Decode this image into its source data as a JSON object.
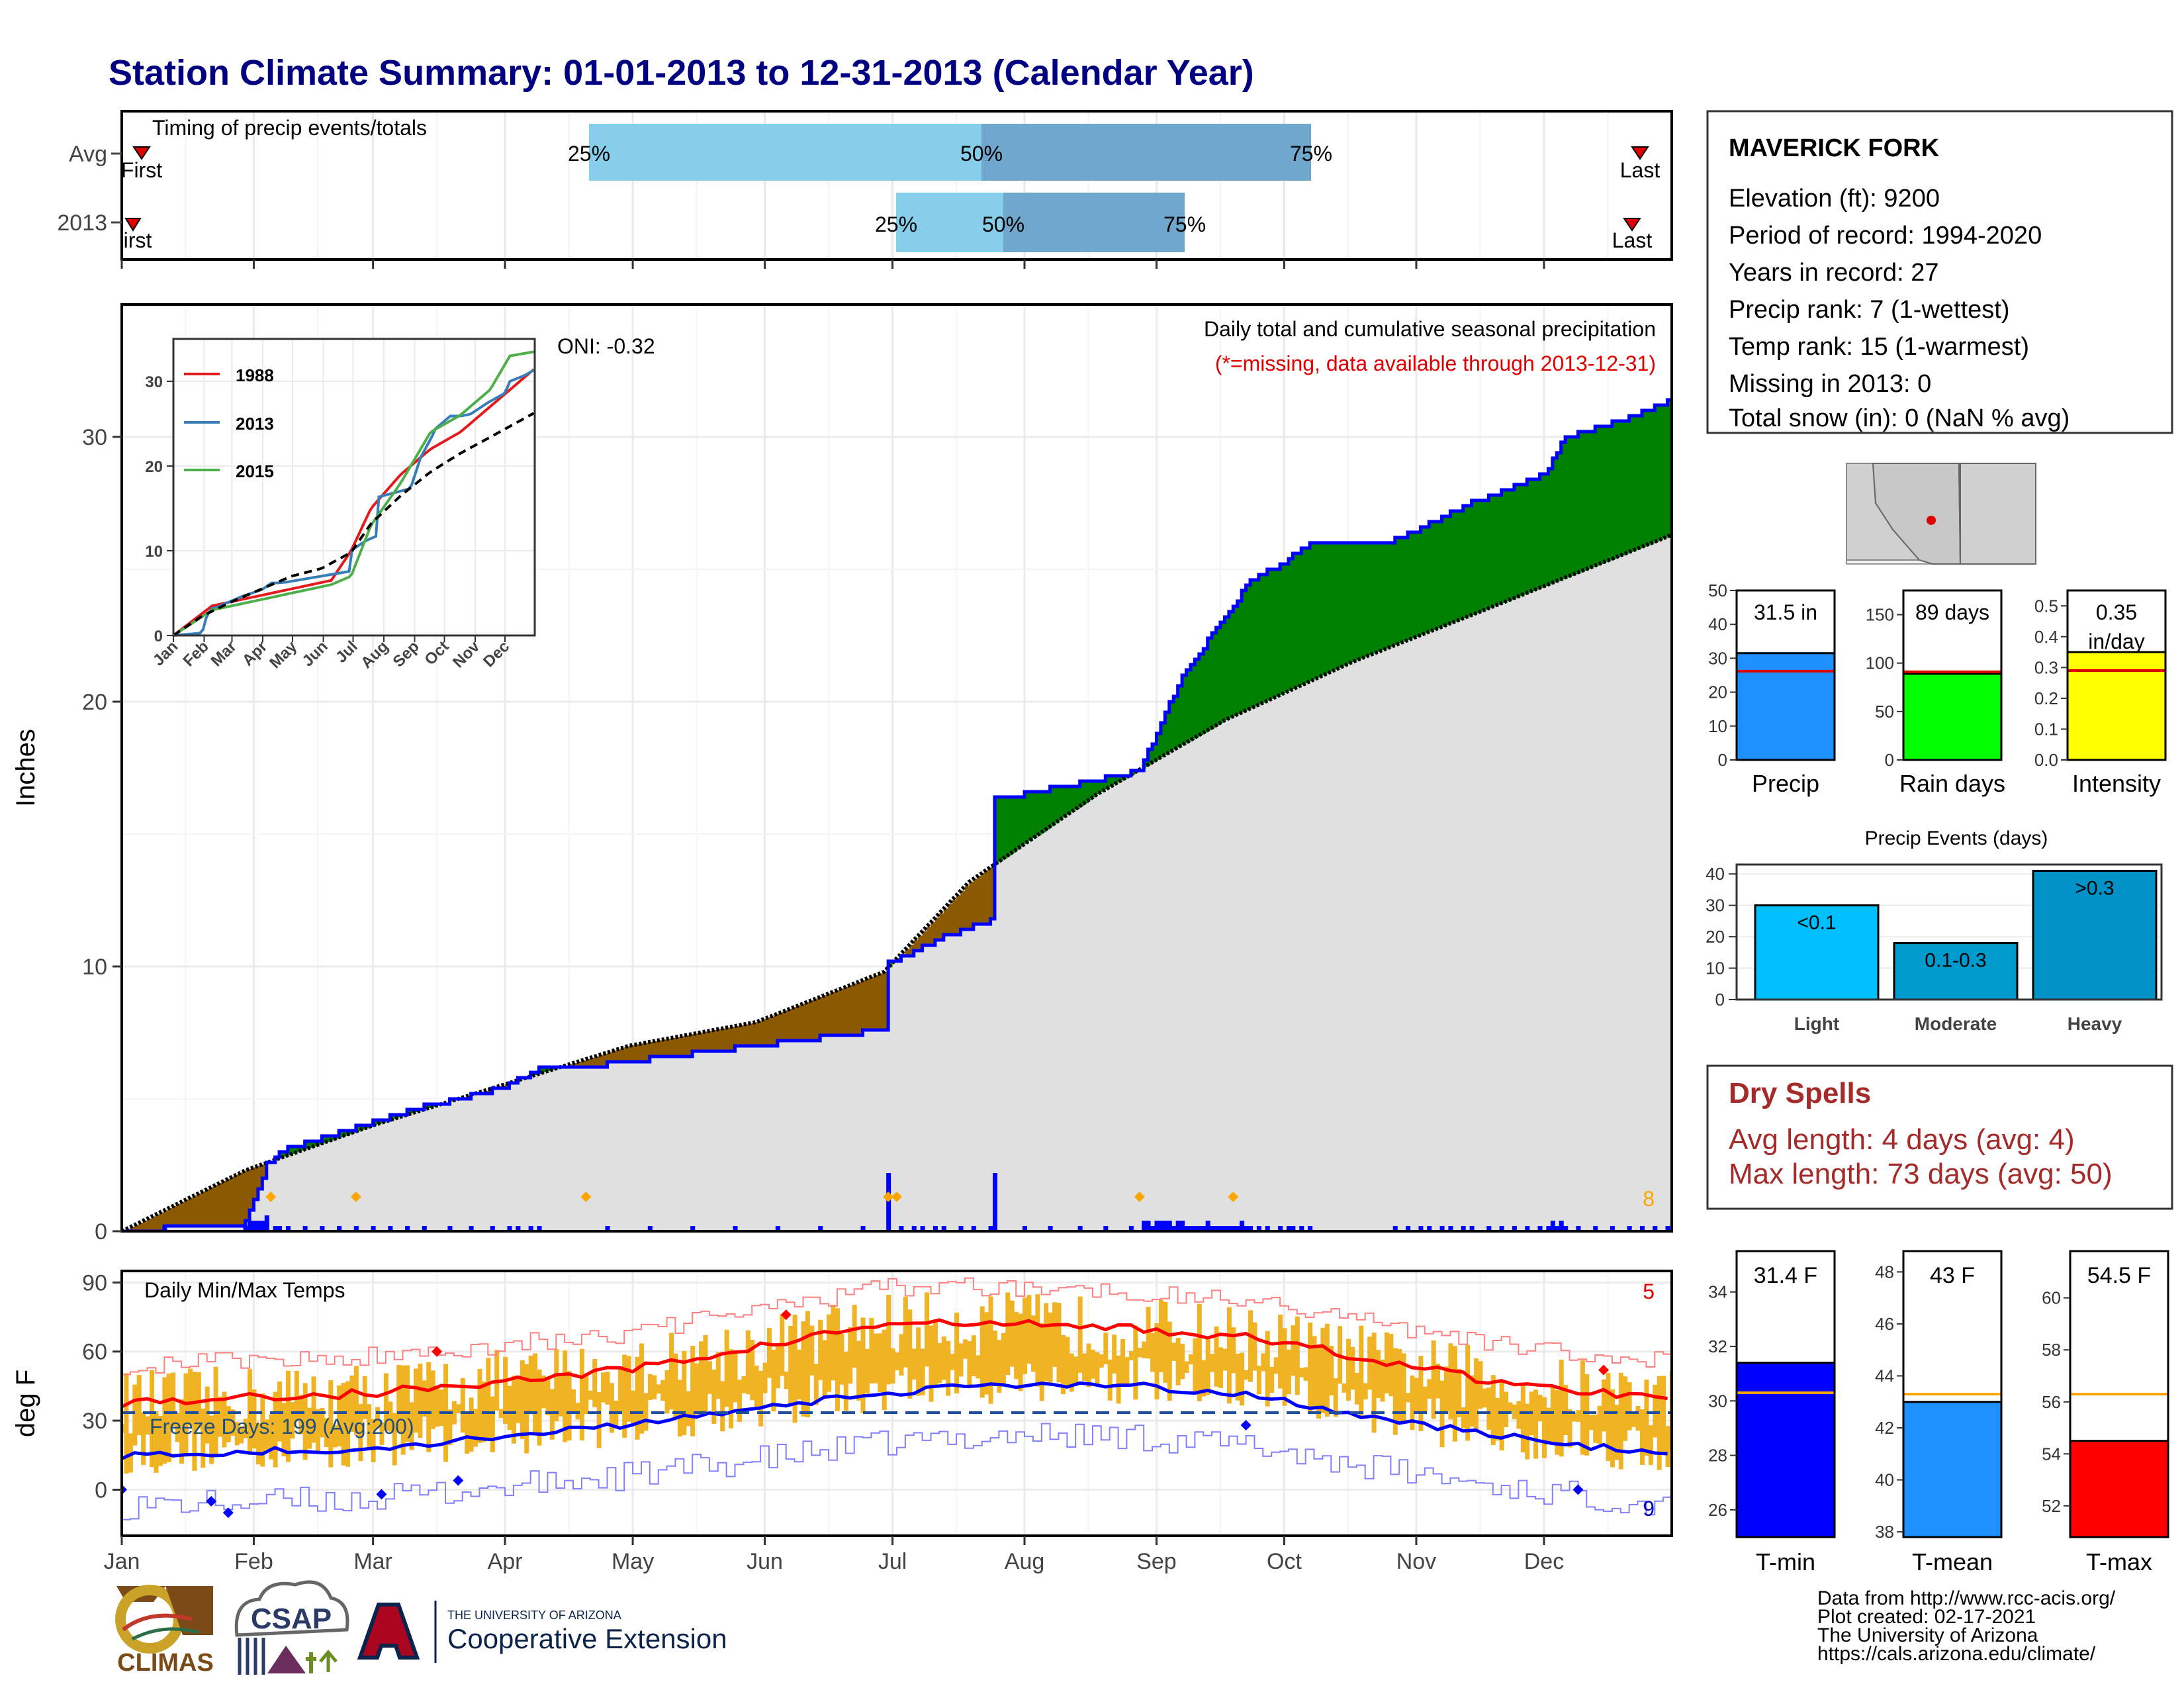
{
  "title": "Station Climate Summary: 01-01-2013 to 12-31-2013 (Calendar Year)",
  "months": [
    "Jan",
    "Feb",
    "Mar",
    "Apr",
    "May",
    "Jun",
    "Jul",
    "Aug",
    "Sep",
    "Oct",
    "Nov",
    "Dec"
  ],
  "timing": {
    "label": "Timing of precip events/totals",
    "rows": [
      "Avg",
      "2013"
    ],
    "first": "First",
    "first_2013": "irst",
    "last": "Last",
    "p25": "25%",
    "p50": "50%",
    "p75": "75%"
  },
  "precip_panel": {
    "ylabel": "Inches",
    "oni": "ONI: -0.32",
    "desc": "Daily total and cumulative seasonal precipitation",
    "missing_note": "(*=missing, data available through 2013-12-31)",
    "count_label": "8"
  },
  "inset": {
    "legend": [
      "1988",
      "2013",
      "2015"
    ],
    "months": [
      "Jan",
      "Feb",
      "Mar",
      "Apr",
      "May",
      "Jun",
      "Jul",
      "Aug",
      "Sep",
      "Oct",
      "Nov",
      "Dec"
    ]
  },
  "temp_panel": {
    "ylabel": "deg F",
    "label": "Daily Min/Max Temps",
    "freeze": "Freeze Days: 199 (Avg:200)",
    "count_hi": "5",
    "count_lo": "9"
  },
  "station": {
    "name": "MAVERICK FORK",
    "lines": [
      "Elevation (ft): 9200",
      "Period of record: 1994-2020",
      "Years in record: 27",
      "Precip rank: 7 (1-wettest)",
      "Temp rank: 15 (1-warmest)",
      "Missing in 2013: 0",
      "Total snow (in): 0 (NaN % avg)"
    ]
  },
  "summary_bars": {
    "precip": {
      "label": "Precip",
      "value_text": "31.5 in",
      "value": 31.5,
      "avg": 26.2,
      "ticks": [
        "0",
        "10",
        "20",
        "30",
        "40",
        "50"
      ],
      "max": 50,
      "color": "#1e90ff"
    },
    "rain_days": {
      "label": "Rain days",
      "value_text": "89 days",
      "value": 89,
      "avg": 91,
      "ticks": [
        "0",
        "50",
        "100",
        "150"
      ],
      "max": 175,
      "color": "#00ff00"
    },
    "intensity": {
      "label": "Intensity",
      "value_text": "0.35",
      "value_text2": "in/day",
      "value": 0.35,
      "avg": 0.29,
      "ticks": [
        "0.0",
        "0.1",
        "0.2",
        "0.3",
        "0.4",
        "0.5"
      ],
      "max": 0.55,
      "color": "#ffff00"
    }
  },
  "precip_events": {
    "title": "Precip Events (days)",
    "categories": [
      "Light",
      "Moderate",
      "Heavy"
    ],
    "bar_labels": [
      "<0.1",
      "0.1-0.3",
      ">0.3"
    ],
    "values": [
      30,
      18,
      41
    ],
    "ticks": [
      "0",
      "10",
      "20",
      "30",
      "40"
    ],
    "colors": [
      "#00bfff",
      "#009acd",
      "#0092c7"
    ]
  },
  "dry_spells": {
    "title": "Dry Spells",
    "avg": "Avg length: 4 days (avg: 4)",
    "max": "Max length: 73 days (avg: 50)"
  },
  "temp_bars": {
    "tmin": {
      "label": "T-min",
      "value_text": "31.4 F",
      "value": 31.4,
      "avg": 30.3,
      "min": 25,
      "max": 35.5,
      "ticks": [
        "26",
        "28",
        "30",
        "32",
        "34"
      ],
      "color": "#0000ff"
    },
    "tmean": {
      "label": "T-mean",
      "value_text": "43 F",
      "value": 43,
      "avg": 43.3,
      "min": 37.8,
      "max": 48.8,
      "ticks": [
        "38",
        "40",
        "42",
        "44",
        "46",
        "48"
      ],
      "color": "#1e90ff"
    },
    "tmax": {
      "label": "T-max",
      "value_text": "54.5 F",
      "value": 54.5,
      "avg": 56.3,
      "min": 50.8,
      "max": 61.8,
      "ticks": [
        "52",
        "54",
        "56",
        "58",
        "60"
      ],
      "color": "#ff0000"
    }
  },
  "credits": [
    "Data from http://www.rcc-acis.org/",
    "Plot created: 02-17-2021",
    "The University of Arizona",
    "https://cals.arizona.edu/climate/"
  ],
  "logos": {
    "climas": "CLIMAS",
    "csap": "CSAP",
    "ua_small": "THE UNIVERSITY OF ARIZONA",
    "coop": "Cooperative Extension"
  },
  "chart_data": [
    {
      "type": "area",
      "title": "Daily total and cumulative seasonal precipitation",
      "ylabel": "Inches",
      "ylim": [
        0,
        35
      ],
      "series": [
        {
          "name": "2013",
          "x": [
            1,
            30,
            35,
            40,
            42,
            72,
            80,
            90,
            100,
            105,
            115,
            180,
            181,
            195,
            205,
            206,
            222,
            238,
            240,
            250,
            262,
            265,
            280,
            290,
            300,
            318,
            335,
            340,
            355,
            365
          ],
          "values": [
            0,
            0.3,
            2.5,
            3.2,
            3.2,
            4.7,
            5.0,
            5.4,
            6.2,
            6.2,
            6.3,
            7.6,
            10.1,
            11.2,
            11.7,
            16.3,
            16.8,
            17.3,
            17.4,
            21,
            23.6,
            24.4,
            25.9,
            25.9,
            26.1,
            27.5,
            28.6,
            30.0,
            30.7,
            31.4
          ]
        },
        {
          "name": "average",
          "x": [
            1,
            30,
            60,
            90,
            120,
            150,
            180,
            200,
            230,
            260,
            290,
            320,
            365
          ],
          "values": [
            0,
            2.3,
            4.0,
            5.5,
            7.0,
            7.9,
            9.8,
            13.2,
            16.5,
            19.3,
            21.5,
            23.4,
            26.3
          ]
        }
      ],
      "annotations": [
        "ONI: -0.32",
        "(*=missing, data available through 2013-12-31)"
      ]
    },
    {
      "type": "line",
      "title": "",
      "ylabel": "deg F",
      "ylim": [
        -20,
        95
      ],
      "series": [
        {
          "name": "avg max",
          "x": [
            1,
            60,
            120,
            180,
            210,
            240,
            270,
            300,
            330,
            365
          ],
          "values": [
            38,
            42,
            52,
            72,
            72,
            70,
            65,
            55,
            45,
            40
          ]
        },
        {
          "name": "avg min",
          "x": [
            1,
            60,
            120,
            180,
            210,
            240,
            270,
            300,
            330,
            365
          ],
          "values": [
            15,
            18,
            28,
            42,
            46,
            45,
            40,
            30,
            22,
            15
          ]
        }
      ],
      "annotations": [
        "Daily Min/Max Temps",
        "Freeze Days: 199 (Avg:200)"
      ]
    }
  ]
}
